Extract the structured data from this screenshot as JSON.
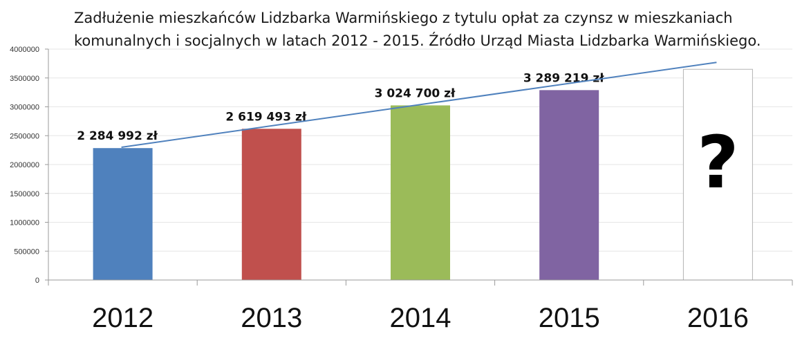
{
  "chart_data": {
    "type": "bar",
    "title_lines": [
      "Zadłużenie mieszkańców Lidzbarka Warmińskiego z tytulu opłat za czynsz w mieszkaniach",
      "komunalnych i socjalnych w latach 2012 - 2015. Źródło Urząd Miasta Lidzbarka Warmińskiego."
    ],
    "categories": [
      "2012",
      "2013",
      "2014",
      "2015",
      "2016"
    ],
    "values": [
      2284992,
      2619493,
      3024700,
      3289219,
      3650000
    ],
    "data_labels": [
      "2 284 992 zł",
      "2 619 493 zł",
      "3 024 700 zł",
      "3 289 219 zł",
      ""
    ],
    "bar_colors": [
      "#4f81bd",
      "#c0504d",
      "#9bbb59",
      "#8064a2",
      "#ffffff"
    ],
    "unknown_marker": "?",
    "y_ticks": [
      "0",
      "500000",
      "1000000",
      "1500000",
      "2000000",
      "2500000",
      "3000000",
      "3500000",
      "4000000"
    ],
    "ylim": [
      0,
      4000000
    ],
    "trendline": {
      "type": "linear",
      "color": "#4f81bd",
      "from_value": 2300000,
      "to_value": 3770000
    },
    "grid": true,
    "legend": "none"
  }
}
